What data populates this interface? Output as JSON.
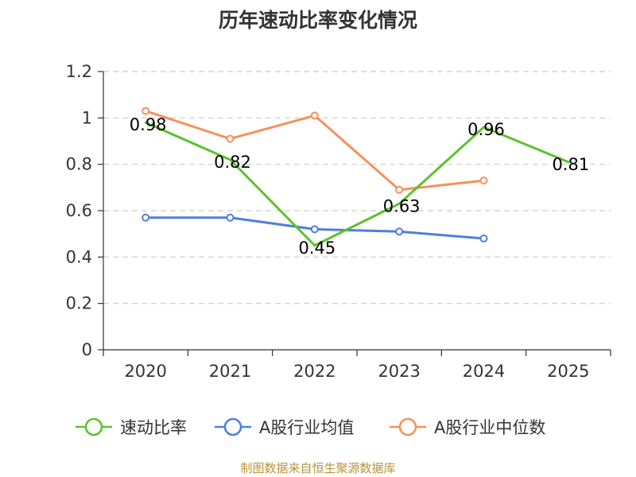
{
  "chart_data": {
    "type": "line",
    "title": "历年速动比率变化情况",
    "categories": [
      "2020",
      "2021",
      "2022",
      "2023",
      "2024",
      "2025"
    ],
    "ylim": [
      0,
      1.2
    ],
    "yticks": [
      "0",
      "0.2",
      "0.4",
      "0.6",
      "0.8",
      "1",
      "1.2"
    ],
    "ytick_values": [
      0,
      0.2,
      0.4,
      0.6,
      0.8,
      1.0,
      1.2
    ],
    "grid": true,
    "legend_position": "bottom",
    "series": [
      {
        "name": "速动比率",
        "color": "#5cc22e",
        "values": [
          0.98,
          0.82,
          0.45,
          0.63,
          0.96,
          0.81
        ],
        "labels": [
          "0.98",
          "0.82",
          "0.45",
          "0.63",
          "0.96",
          "0.81"
        ],
        "show_markers": false,
        "show_labels": true
      },
      {
        "name": "A股行业均值",
        "color": "#4e7fdc",
        "values": [
          0.57,
          0.57,
          0.52,
          0.51,
          0.48,
          null
        ],
        "show_markers": true,
        "show_labels": false
      },
      {
        "name": "A股行业中位数",
        "color": "#f6905a",
        "values": [
          1.03,
          0.91,
          1.01,
          0.69,
          0.73,
          null
        ],
        "show_markers": true,
        "show_labels": false
      }
    ],
    "source": "制图数据来自恒生聚源数据库"
  }
}
